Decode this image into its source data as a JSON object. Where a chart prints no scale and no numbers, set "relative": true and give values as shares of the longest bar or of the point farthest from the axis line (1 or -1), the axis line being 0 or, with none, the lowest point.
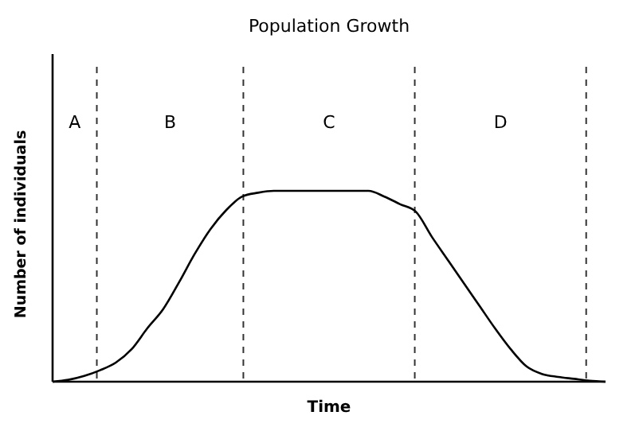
{
  "chart_data": {
    "type": "line",
    "relative": true,
    "title": "Population Growth",
    "xlabel": "Time",
    "ylabel": "Number of individuals",
    "categories": [
      null,
      null,
      null,
      null,
      null,
      null,
      null,
      null,
      null,
      null,
      null,
      null,
      null,
      null,
      null,
      null,
      null,
      null,
      null,
      null,
      null,
      null,
      null,
      null,
      null,
      null,
      null,
      null,
      null,
      null,
      null,
      null,
      null,
      null,
      null,
      null
    ],
    "series": [
      {
        "color": "#000000",
        "values": [
          0,
          0.01,
          0.03,
          0.06,
          0.1,
          0.17,
          0.28,
          0.38,
          0.52,
          0.67,
          0.8,
          0.9,
          0.97,
          0.99,
          1,
          1,
          1,
          1,
          1,
          1,
          1,
          0.97,
          0.93,
          0.89,
          0.76,
          0.64,
          0.52,
          0.4,
          0.28,
          0.17,
          0.08,
          0.04,
          0.025,
          0.015,
          0.005,
          0
        ]
      }
    ],
    "annotations": [
      "A",
      "B",
      "C",
      "D"
    ],
    "line_style": "solid"
  }
}
